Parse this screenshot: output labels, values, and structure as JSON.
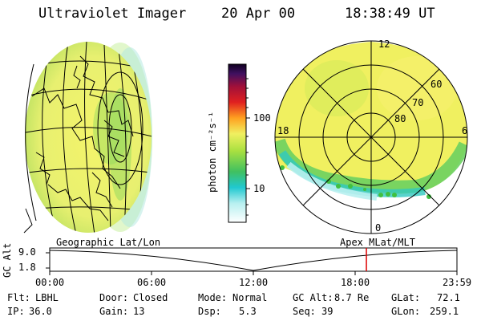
{
  "header": {
    "instrument": "Ultraviolet Imager",
    "date": "20 Apr 00",
    "time": "18:38:49 UT"
  },
  "colorbar": {
    "unit_label": "photon cm⁻²s⁻¹",
    "ticks": [
      "100",
      "10"
    ],
    "scale": "log"
  },
  "polar_plot": {
    "mlt_labels": {
      "top": "12",
      "left": "18",
      "right": "6",
      "bottom": "0"
    },
    "lat_labels": [
      "60",
      "70",
      "80"
    ]
  },
  "timeline": {
    "left_label": "Geographic Lat/Lon",
    "right_label": "Apex MLat/MLT",
    "y_axis_label": "GC Alt",
    "y_ticks": [
      "9.0",
      "1.8"
    ],
    "x_ticks": [
      "00:00",
      "06:00",
      "12:00",
      "18:00",
      "23:59"
    ],
    "current_time_hours": 18.65,
    "marker_color": "#dd0000"
  },
  "status": {
    "filter_label": "Flt:",
    "filter_value": "LBHL",
    "ip_label": "IP:",
    "ip_value": "36.0",
    "door_label": "Door:",
    "door_value": "Closed",
    "gain_label": "Gain:",
    "gain_value": "13",
    "mode_label": "Mode:",
    "mode_value": "Normal",
    "dsp_label": "Dsp:",
    "dsp_value": "5.3",
    "gcalt_label": "GC Alt:",
    "gcalt_value": "8.7 Re",
    "seq_label": "Seq:",
    "seq_value": "39",
    "glat_label": "GLat:",
    "glat_value": "72.1",
    "glon_label": "GLon:",
    "glon_value": "259.1"
  }
}
